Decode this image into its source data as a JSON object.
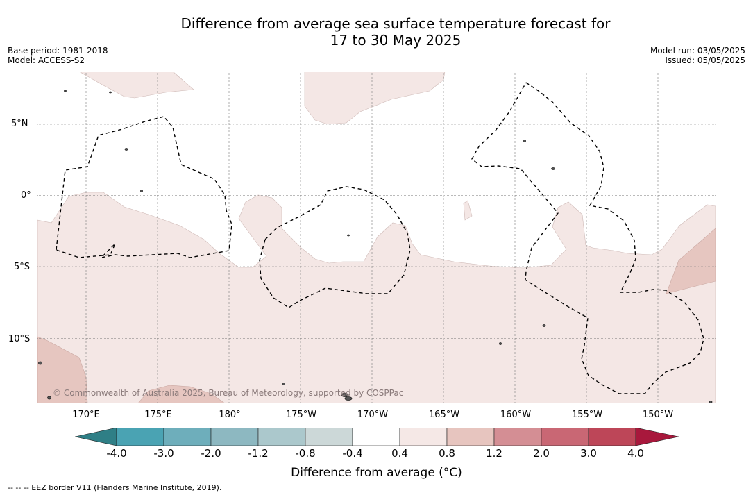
{
  "title_line1": "Difference from average sea surface temperature forecast for",
  "title_line2": "17 to 30 May 2025",
  "meta_left": {
    "base_period": "Base period: 1981-2018",
    "model": "Model: ACCESS-S2"
  },
  "meta_right": {
    "model_run": "Model run: 03/05/2025",
    "issued": "Issued: 05/05/2025"
  },
  "lat_labels": [
    "5°N",
    "0°",
    "5°S",
    "10°S"
  ],
  "lon_labels": [
    "170°E",
    "175°E",
    "180°",
    "175°W",
    "170°W",
    "165°W",
    "160°W",
    "155°W",
    "150°W"
  ],
  "copyright": "© Commonwealth of Australia 2025, Bureau of Meteorology, supported by COSPPac",
  "colorbar": {
    "label": "Difference from average (°C)",
    "ticks": [
      "-4.0",
      "-3.0",
      "-2.0",
      "-1.2",
      "-0.8",
      "-0.4",
      "0.4",
      "0.8",
      "1.2",
      "2.0",
      "3.0",
      "4.0"
    ],
    "colors": [
      "#2f7f86",
      "#4aa3b3",
      "#6eaebb",
      "#8db8c1",
      "#abc8cc",
      "#ccd8d8",
      "#ffffff",
      "#f5e8e6",
      "#e7c5bf",
      "#d48e94",
      "#c96774",
      "#bd4658",
      "#a8183c"
    ]
  },
  "map_colors": {
    "light_anomaly": "#f4e7e5",
    "mid_anomaly": "#e6c6c0",
    "land": "#555555"
  },
  "footer": "--  --  -- EEZ border V11 (Flanders Marine Institute, 2019)."
}
